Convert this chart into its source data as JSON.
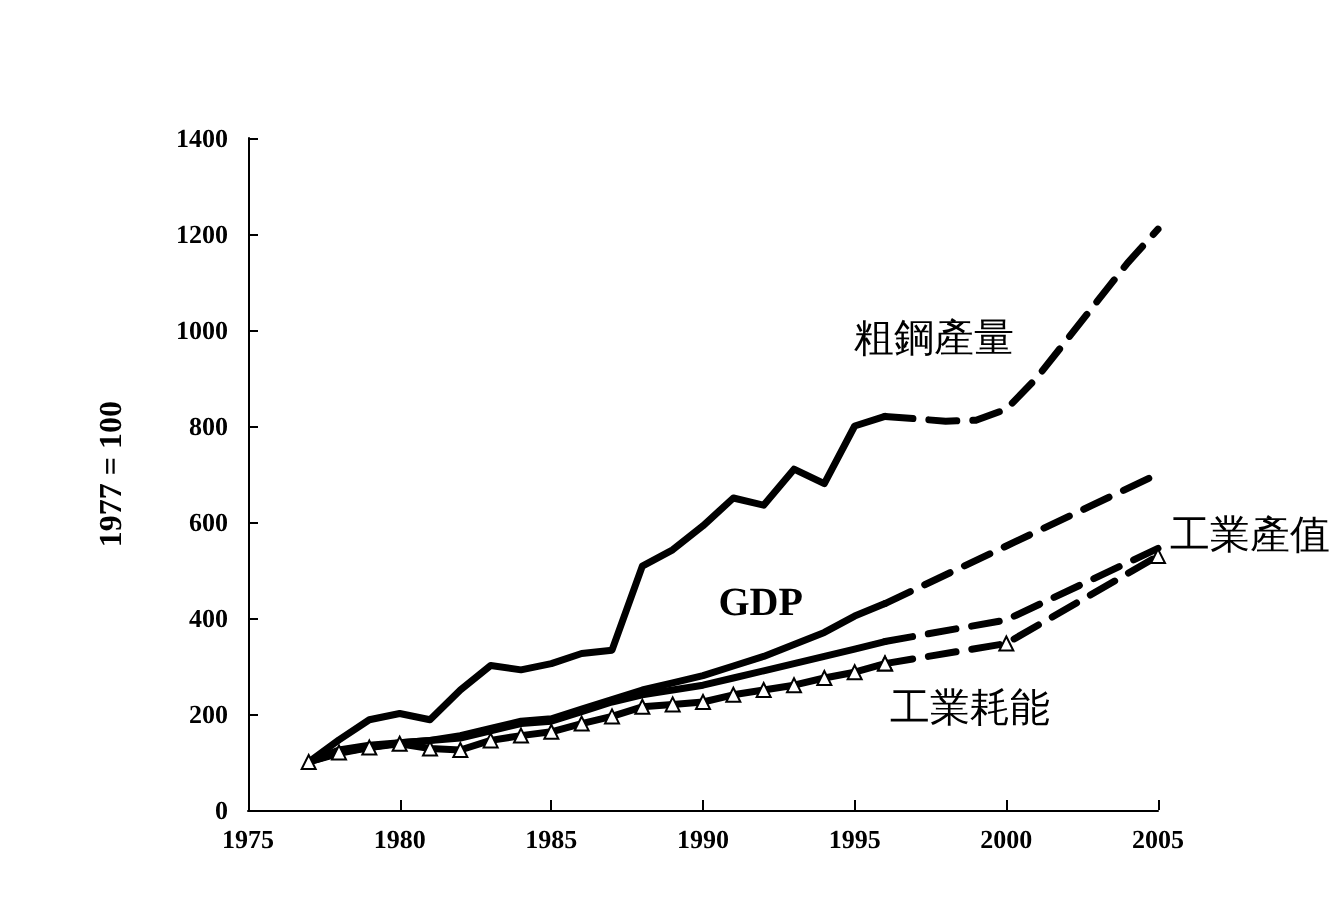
{
  "chart_data": {
    "type": "line",
    "ylabel": "1977 = 100",
    "xlim": [
      1975,
      2005
    ],
    "xticks": [
      1975,
      1980,
      1985,
      1990,
      1995,
      2000,
      2005
    ],
    "ylim": [
      0,
      1400
    ],
    "yticks": [
      0,
      200,
      400,
      600,
      800,
      1000,
      1200,
      1400
    ],
    "grid": false,
    "legend": false,
    "series": [
      {
        "name": "粗鋼產量",
        "color": "#000000",
        "line_style": "solid",
        "marker": "none",
        "x": [
          1977,
          1978,
          1979,
          1980,
          1981,
          1982,
          1983,
          1984,
          1985,
          1986,
          1987,
          1988,
          1989,
          1990,
          1991,
          1992,
          1993,
          1994,
          1995,
          1996
        ],
        "values": [
          100,
          146,
          188,
          201,
          188,
          250,
          301,
          292,
          305,
          326,
          333,
          508,
          542,
          592,
          650,
          635,
          710,
          680,
          800,
          820
        ]
      },
      {
        "color": "#000000",
        "line_style": "dashed",
        "marker": "none",
        "x": [
          1996,
          1997,
          1998,
          1999,
          2000,
          2001,
          2002,
          2003,
          2004,
          2005
        ],
        "values": [
          820,
          815,
          810,
          812,
          835,
          900,
          980,
          1060,
          1140,
          1210
        ]
      },
      {
        "name": "GDP",
        "color": "#000000",
        "line_style": "solid",
        "marker": "none",
        "x": [
          1977,
          1978,
          1979,
          1980,
          1981,
          1982,
          1983,
          1984,
          1985,
          1986,
          1987,
          1988,
          1989,
          1990,
          1991,
          1992,
          1993,
          1994,
          1995,
          1996
        ],
        "values": [
          100,
          125,
          135,
          140,
          145,
          155,
          170,
          185,
          190,
          210,
          230,
          250,
          265,
          280,
          300,
          320,
          345,
          370,
          404,
          430
        ]
      },
      {
        "color": "#000000",
        "line_style": "dashed",
        "marker": "none",
        "x": [
          1996,
          2000,
          2005
        ],
        "values": [
          430,
          550,
          700
        ]
      },
      {
        "color": "#000000",
        "line_style": "solid",
        "marker": "none",
        "x": [
          1977,
          1978,
          1979,
          1980,
          1981,
          1982,
          1983,
          1984,
          1985,
          1986,
          1987,
          1988,
          1989,
          1990,
          1991,
          1992,
          1993,
          1994,
          1995,
          1996
        ],
        "values": [
          100,
          118,
          130,
          140,
          145,
          150,
          165,
          180,
          185,
          205,
          225,
          240,
          250,
          260,
          275,
          290,
          305,
          320,
          335,
          351
        ]
      },
      {
        "name": "工業產值",
        "color": "#000000",
        "line_style": "dashed",
        "marker": "none",
        "x": [
          1996,
          2000,
          2005
        ],
        "values": [
          351,
          396,
          545
        ]
      },
      {
        "name": "工業耗能",
        "color": "#000000",
        "line_style": "solid",
        "marker": "triangle",
        "x": [
          1977,
          1978,
          1979,
          1980,
          1981,
          1982,
          1983,
          1984,
          1985,
          1986,
          1987,
          1988,
          1989,
          1990,
          1991,
          1992,
          1993,
          1994,
          1995,
          1996
        ],
        "values": [
          100,
          120,
          130,
          138,
          128,
          125,
          145,
          155,
          163,
          180,
          195,
          215,
          220,
          225,
          240,
          250,
          260,
          275,
          287,
          305
        ]
      },
      {
        "color": "#000000",
        "line_style": "dashed",
        "marker": "triangle",
        "x": [
          1996,
          2000,
          2005
        ],
        "values": [
          305,
          347,
          529
        ]
      }
    ]
  }
}
